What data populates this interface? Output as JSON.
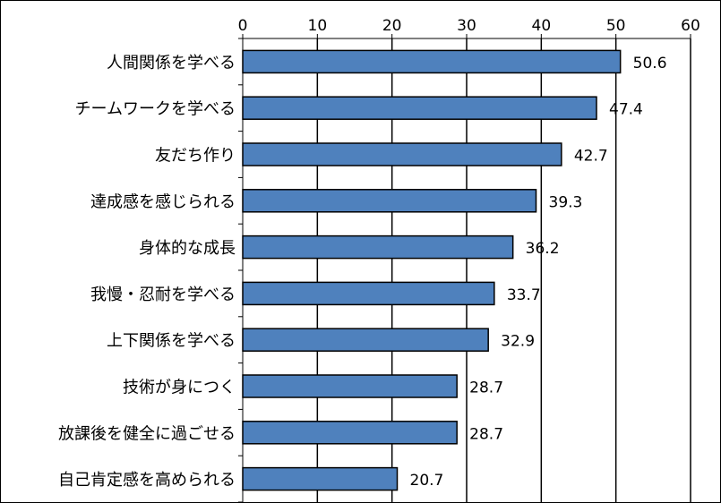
{
  "chart_data": {
    "type": "bar",
    "orientation": "horizontal",
    "title": "",
    "xlabel": "",
    "ylabel": "",
    "xlim": [
      0,
      60
    ],
    "ticks": [
      0,
      10,
      20,
      30,
      40,
      50,
      60
    ],
    "tick_position": "top",
    "grid": true,
    "legend": "none",
    "bar_color": "#4f81bd",
    "bar_edge_color": "#000000",
    "categories": [
      "人間関係を学べる",
      "チームワークを学べる",
      "友だち作り",
      "達成感を感じられる",
      "身体的な成長",
      "我慢・忍耐を学べる",
      "上下関係を学べる",
      "技術が身につく",
      "放課後を健全に過ごせる",
      "自己肯定感を高められる"
    ],
    "values": [
      50.6,
      47.4,
      42.7,
      39.3,
      36.2,
      33.7,
      32.9,
      28.7,
      28.7,
      20.7
    ],
    "value_labels": [
      "50.6",
      "47.4",
      "42.7",
      "39.3",
      "36.2",
      "33.7",
      "32.9",
      "28.7",
      "28.7",
      "20.7"
    ]
  }
}
